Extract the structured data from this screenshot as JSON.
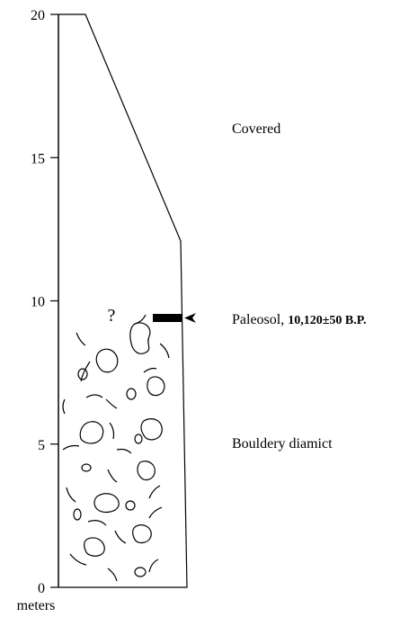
{
  "axis": {
    "label": "meters",
    "ticks": [
      0,
      5,
      10,
      15,
      20
    ],
    "lim": [
      0,
      20
    ]
  },
  "units": {
    "covered": "Covered",
    "paleosol": "Paleosol,",
    "paleosol_age": "10,120±50 B.P.",
    "diamict": "Bouldery diamict"
  },
  "question": "?"
}
